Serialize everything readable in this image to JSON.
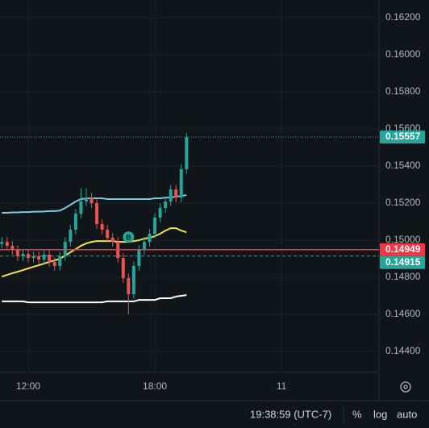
{
  "chart_data": {
    "type": "candlestick",
    "x": [
      10.75,
      11,
      11.25,
      11.5,
      11.75,
      12,
      12.25,
      12.5,
      12.75,
      13,
      13.25,
      13.5,
      13.75,
      14,
      14.25,
      14.5,
      14.75,
      15,
      15.25,
      15.5,
      15.75,
      16,
      16.25,
      16.5,
      16.75,
      17,
      17.25,
      17.5,
      17.75,
      18,
      18.25,
      18.5,
      18.75,
      19,
      19.25,
      19.5
    ],
    "open": [
      0.1498,
      0.14991,
      0.1497,
      0.14948,
      0.14913,
      0.14926,
      0.14904,
      0.14913,
      0.14896,
      0.14922,
      0.14883,
      0.14861,
      0.14913,
      0.14991,
      0.15057,
      0.15143,
      0.15209,
      0.1523,
      0.152,
      0.15087,
      0.15057,
      0.15013,
      0.14991,
      0.14904,
      0.14796,
      0.14709,
      0.14861,
      0.14948,
      0.14991,
      0.15035,
      0.15122,
      0.15174,
      0.15209,
      0.15274,
      0.1523,
      0.15383
    ],
    "high": [
      0.15016,
      0.15016,
      0.14995,
      0.14973,
      0.14951,
      0.14951,
      0.14938,
      0.14938,
      0.14947,
      0.14947,
      0.14908,
      0.14938,
      0.15016,
      0.15082,
      0.15168,
      0.1528,
      0.1528,
      0.15255,
      0.15225,
      0.15112,
      0.15082,
      0.15038,
      0.15016,
      0.14929,
      0.14821,
      0.14886,
      0.14973,
      0.15016,
      0.1506,
      0.15147,
      0.15199,
      0.15234,
      0.15299,
      0.15299,
      0.15408,
      0.1558
    ],
    "low": [
      0.14955,
      0.14945,
      0.14923,
      0.14888,
      0.14888,
      0.14879,
      0.14879,
      0.14871,
      0.14871,
      0.14858,
      0.14836,
      0.14836,
      0.14888,
      0.14966,
      0.15032,
      0.15118,
      0.15184,
      0.15175,
      0.15062,
      0.15032,
      0.14988,
      0.14966,
      0.14879,
      0.14771,
      0.146,
      0.14684,
      0.14836,
      0.14923,
      0.14966,
      0.1501,
      0.15097,
      0.15149,
      0.15184,
      0.15205,
      0.15205,
      0.15358
    ],
    "close": [
      0.14991,
      0.1497,
      0.14948,
      0.14913,
      0.14926,
      0.14904,
      0.14913,
      0.14896,
      0.14922,
      0.14883,
      0.14861,
      0.14913,
      0.14991,
      0.15057,
      0.15143,
      0.15209,
      0.1523,
      0.152,
      0.15087,
      0.15057,
      0.15013,
      0.14991,
      0.14904,
      0.14796,
      0.14709,
      0.14861,
      0.14948,
      0.14991,
      0.15035,
      0.15122,
      0.15174,
      0.15209,
      0.15274,
      0.1523,
      0.15383,
      0.15557
    ],
    "up_color": "#26a69a",
    "down_color": "#ef5350",
    "lines": [
      {
        "color": "#7ec8e3",
        "values": [
          0.15148,
          0.15148,
          0.1515,
          0.1515,
          0.15152,
          0.15152,
          0.15154,
          0.15154,
          0.15155,
          0.15157,
          0.15157,
          0.1516,
          0.15174,
          0.15191,
          0.15209,
          0.15222,
          0.15226,
          0.15226,
          0.15226,
          0.15226,
          0.15222,
          0.15222,
          0.15222,
          0.15222,
          0.15222,
          0.15222,
          0.15222,
          0.15222,
          0.15222,
          0.15226,
          0.15226,
          0.1523,
          0.1523,
          0.15235,
          0.15239,
          0.15243
        ]
      },
      {
        "color": "#f5e14a",
        "values": [
          0.14804,
          0.14813,
          0.14822,
          0.1483,
          0.14839,
          0.14848,
          0.14857,
          0.14865,
          0.14874,
          0.14883,
          0.14891,
          0.149,
          0.14917,
          0.14935,
          0.14952,
          0.1497,
          0.14983,
          0.14991,
          0.14995,
          0.14995,
          0.14995,
          0.14995,
          0.14991,
          0.14991,
          0.14991,
          0.14995,
          0.15,
          0.15009,
          0.15013,
          0.15022,
          0.15035,
          0.15052,
          0.15065,
          0.15065,
          0.15052,
          0.15043
        ]
      },
      {
        "color": "#ffffff",
        "values": [
          0.1467,
          0.1467,
          0.1467,
          0.1467,
          0.1467,
          0.14665,
          0.14665,
          0.14665,
          0.14665,
          0.14665,
          0.14665,
          0.14665,
          0.14665,
          0.14665,
          0.14665,
          0.14665,
          0.14665,
          0.14665,
          0.14665,
          0.14665,
          0.1467,
          0.1467,
          0.1467,
          0.1467,
          0.1467,
          0.1467,
          0.14678,
          0.14678,
          0.14678,
          0.14678,
          0.14687,
          0.14687,
          0.14687,
          0.14696,
          0.147,
          0.14704
        ]
      }
    ],
    "price_lines": [
      {
        "value": 0.15557,
        "color": "#26a69a",
        "style": "dotted"
      },
      {
        "value": 0.14949,
        "color": "#f23645",
        "style": "solid"
      },
      {
        "value": 0.14915,
        "color": "#26a69a",
        "style": "dashed"
      }
    ],
    "marker": {
      "label": "B",
      "color": "#26a69a"
    },
    "xlim": [
      10.663,
      28.62
    ],
    "xticks": [
      {
        "value": 12,
        "label": "12:00"
      },
      {
        "value": 18,
        "label": "18:00"
      },
      {
        "value": 24,
        "label": "11"
      }
    ],
    "ylim": [
      0.14287,
      0.16296
    ],
    "yticks": [
      {
        "value": 0.144,
        "label": "0.14400"
      },
      {
        "value": 0.146,
        "label": "0.14600"
      },
      {
        "value": 0.148,
        "label": "0.14800"
      },
      {
        "value": 0.15,
        "label": "0.15000"
      },
      {
        "value": 0.152,
        "label": "0.15200"
      },
      {
        "value": 0.154,
        "label": "0.15400"
      },
      {
        "value": 0.156,
        "label": "0.15600"
      },
      {
        "value": 0.158,
        "label": "0.15800"
      },
      {
        "value": 0.16,
        "label": "0.16000"
      },
      {
        "value": 0.162,
        "label": "0.16200"
      }
    ],
    "grid": true,
    "toolbar": {
      "clock": "19:38:59 (UTC-7)",
      "percent": "%",
      "log": "log",
      "auto": "auto"
    }
  }
}
